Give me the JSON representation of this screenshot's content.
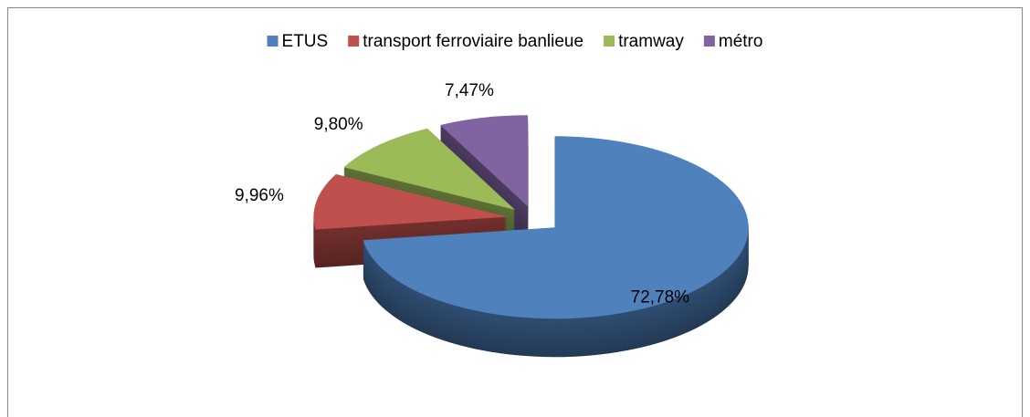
{
  "chart_data": {
    "type": "pie",
    "categories": [
      "ETUS",
      "transport ferroviaire banlieue",
      "tramway",
      "métro"
    ],
    "values": [
      72.78,
      9.96,
      9.8,
      7.47
    ],
    "value_labels": [
      "72,78%",
      "9,96%",
      "9,80%",
      "7,47%"
    ],
    "colors": [
      "#4f81bd",
      "#c0504d",
      "#9bbb59",
      "#8064a2"
    ],
    "legend": "top"
  }
}
